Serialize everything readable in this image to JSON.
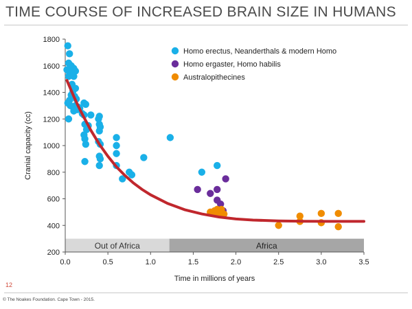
{
  "slide": {
    "title": "TIME COURSE OF INCREASED BRAIN SIZE IN HUMANS",
    "page_number": "12",
    "copyright": "© The Noakes Foundation. Cape Town - 2015."
  },
  "chart_data": {
    "type": "scatter",
    "title": "",
    "xlabel": "Time in millions of years",
    "ylabel": "Cranial capacity (cc)",
    "xlim": [
      0,
      3.5
    ],
    "ylim": [
      200,
      1800
    ],
    "xticks": [
      "0.0",
      "0.5",
      "1.0",
      "1.5",
      "2.0",
      "2.5",
      "3.0",
      "3.5"
    ],
    "yticks": [
      "200",
      "400",
      "600",
      "800",
      "1000",
      "1200",
      "1400",
      "1600",
      "1800"
    ],
    "grid": false,
    "legend_position": "top-right",
    "regions": [
      {
        "label": "Out of Africa",
        "x_start": 0.0,
        "x_end": 1.22,
        "color": "#d9d9d9",
        "text_color": "#333333"
      },
      {
        "label": "Africa",
        "x_start": 1.22,
        "x_end": 3.5,
        "color": "#a6a6a6",
        "text_color": "#222222"
      }
    ],
    "trend_curve": {
      "color": "#c0272d",
      "points": [
        [
          0.02,
          1490
        ],
        [
          0.05,
          1445
        ],
        [
          0.1,
          1370
        ],
        [
          0.15,
          1300
        ],
        [
          0.2,
          1235
        ],
        [
          0.3,
          1115
        ],
        [
          0.4,
          1010
        ],
        [
          0.5,
          920
        ],
        [
          0.6,
          840
        ],
        [
          0.7,
          775
        ],
        [
          0.8,
          718
        ],
        [
          0.9,
          670
        ],
        [
          1.0,
          630
        ],
        [
          1.2,
          565
        ],
        [
          1.4,
          518
        ],
        [
          1.6,
          486
        ],
        [
          1.8,
          463
        ],
        [
          2.0,
          448
        ],
        [
          2.2,
          440
        ],
        [
          2.5,
          434
        ],
        [
          2.8,
          431
        ],
        [
          3.1,
          430
        ],
        [
          3.5,
          430
        ]
      ]
    },
    "series": [
      {
        "name": "Homo erectus, Neanderthals & modern Homo",
        "color": "#1ab0e8",
        "points": [
          [
            0.03,
            1750
          ],
          [
            0.05,
            1690
          ],
          [
            0.04,
            1620
          ],
          [
            0.07,
            1600
          ],
          [
            0.1,
            1580
          ],
          [
            0.02,
            1570
          ],
          [
            0.05,
            1550
          ],
          [
            0.08,
            1540
          ],
          [
            0.12,
            1560
          ],
          [
            0.04,
            1520
          ],
          [
            0.1,
            1520
          ],
          [
            0.08,
            1460
          ],
          [
            0.12,
            1430
          ],
          [
            0.09,
            1410
          ],
          [
            0.07,
            1380
          ],
          [
            0.11,
            1370
          ],
          [
            0.13,
            1350
          ],
          [
            0.05,
            1340
          ],
          [
            0.03,
            1320
          ],
          [
            0.06,
            1300
          ],
          [
            0.09,
            1290
          ],
          [
            0.12,
            1300
          ],
          [
            0.15,
            1290
          ],
          [
            0.14,
            1270
          ],
          [
            0.1,
            1260
          ],
          [
            0.17,
            1280
          ],
          [
            0.22,
            1320
          ],
          [
            0.24,
            1310
          ],
          [
            0.2,
            1240
          ],
          [
            0.22,
            1230
          ],
          [
            0.3,
            1230
          ],
          [
            0.27,
            1150
          ],
          [
            0.23,
            1160
          ],
          [
            0.25,
            1120
          ],
          [
            0.22,
            1080
          ],
          [
            0.23,
            1050
          ],
          [
            0.24,
            1010
          ],
          [
            0.04,
            1200
          ],
          [
            0.4,
            1220
          ],
          [
            0.39,
            1200
          ],
          [
            0.4,
            1160
          ],
          [
            0.41,
            1140
          ],
          [
            0.4,
            1110
          ],
          [
            0.39,
            1030
          ],
          [
            0.41,
            1010
          ],
          [
            0.4,
            920
          ],
          [
            0.41,
            900
          ],
          [
            0.4,
            850
          ],
          [
            0.23,
            880
          ],
          [
            0.6,
            1060
          ],
          [
            0.6,
            1000
          ],
          [
            0.6,
            940
          ],
          [
            0.6,
            850
          ],
          [
            0.67,
            750
          ],
          [
            0.75,
            800
          ],
          [
            0.78,
            780
          ],
          [
            0.92,
            910
          ],
          [
            1.23,
            1060
          ],
          [
            1.6,
            800
          ],
          [
            1.78,
            850
          ]
        ]
      },
      {
        "name": "Homo ergaster, Homo habilis",
        "color": "#6a2d9b",
        "points": [
          [
            1.55,
            670
          ],
          [
            1.7,
            640
          ],
          [
            1.78,
            670
          ],
          [
            1.78,
            590
          ],
          [
            1.82,
            560
          ],
          [
            1.8,
            520
          ],
          [
            1.85,
            510
          ],
          [
            1.88,
            750
          ]
        ]
      },
      {
        "name": "Australopithecines",
        "color": "#f08c00",
        "points": [
          [
            1.7,
            500
          ],
          [
            1.75,
            510
          ],
          [
            1.78,
            520
          ],
          [
            1.83,
            520
          ],
          [
            1.86,
            485
          ],
          [
            1.8,
            490
          ],
          [
            1.73,
            490
          ],
          [
            2.5,
            400
          ],
          [
            2.75,
            470
          ],
          [
            2.75,
            430
          ],
          [
            3.0,
            490
          ],
          [
            3.0,
            420
          ],
          [
            3.2,
            490
          ],
          [
            3.2,
            390
          ]
        ]
      }
    ]
  }
}
